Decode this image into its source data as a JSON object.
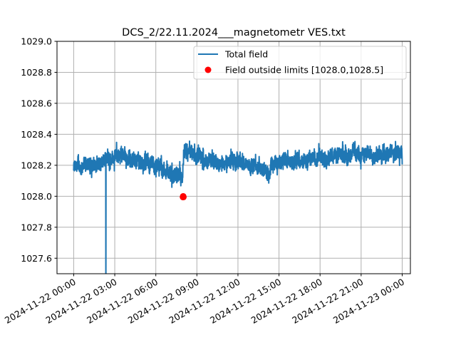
{
  "chart_data": {
    "type": "line",
    "title": "DCS_2/22.11.2024___magnetometr VES.txt",
    "xlabel": "",
    "ylabel": "",
    "xlim_hours": [
      -1.22,
      24.6
    ],
    "ylim": [
      1027.5,
      1029.0
    ],
    "grid": true,
    "legend_position": "top-right",
    "yticks": [
      1027.6,
      1027.8,
      1028.0,
      1028.2,
      1028.4,
      1028.6,
      1028.8,
      1029.0
    ],
    "ytick_labels": [
      "1027.6",
      "1027.8",
      "1028.0",
      "1028.2",
      "1028.4",
      "1028.6",
      "1028.8",
      "1029.0"
    ],
    "xticks_hours": [
      0,
      3,
      6,
      9,
      12,
      15,
      18,
      21,
      24
    ],
    "xtick_labels": [
      "2024-11-22 00:00",
      "2024-11-22 03:00",
      "2024-11-22 06:00",
      "2024-11-22 09:00",
      "2024-11-22 12:00",
      "2024-11-22 15:00",
      "2024-11-22 18:00",
      "2024-11-22 21:00",
      "2024-11-23 00:00"
    ],
    "series": [
      {
        "name": "Total field",
        "color": "#1f77b4",
        "envelope_hours": [
          0,
          1,
          2,
          2.4,
          3,
          4,
          5,
          6,
          7,
          7.95,
          8.05,
          9,
          10,
          11,
          12,
          13,
          14,
          14.3,
          14.4,
          15,
          16,
          17,
          18,
          19,
          20,
          21,
          22,
          23,
          24
        ],
        "envelope_mean": [
          1028.18,
          1028.2,
          1028.2,
          1028.25,
          1028.26,
          1028.25,
          1028.22,
          1028.2,
          1028.15,
          1028.12,
          1028.28,
          1028.25,
          1028.22,
          1028.22,
          1028.22,
          1028.2,
          1028.17,
          1028.13,
          1028.22,
          1028.22,
          1028.23,
          1028.24,
          1028.25,
          1028.26,
          1028.27,
          1028.27,
          1028.28,
          1028.28,
          1028.29
        ],
        "noise_amplitude": 0.055,
        "spike": {
          "hour": 2.35,
          "value": 1027.3
        }
      },
      {
        "name": "Field outside limits [1028.0,1028.5]",
        "color": "#ff0000",
        "type": "scatter",
        "x_hours": [
          7.98,
          8.0,
          8.02
        ],
        "values": [
          1027.995,
          1028.0,
          1027.995
        ]
      }
    ]
  }
}
